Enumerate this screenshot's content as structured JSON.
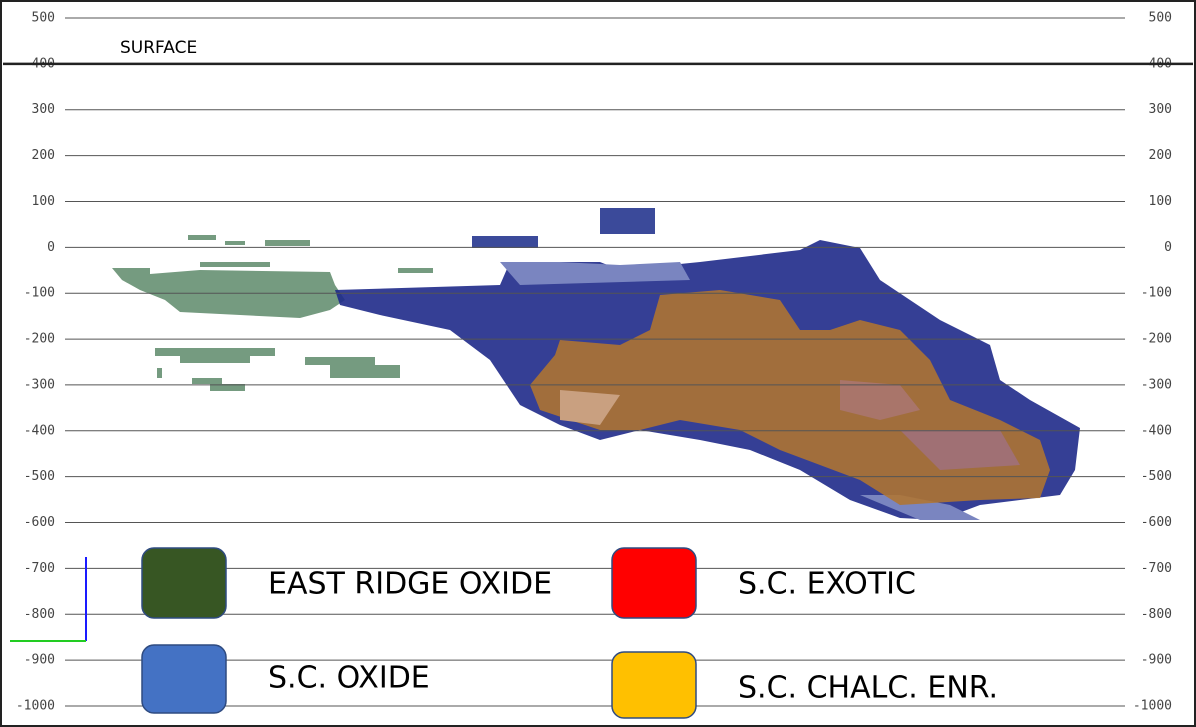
{
  "chart_data": {
    "type": "section",
    "annotation": "SURFACE",
    "surface_level": 400,
    "ylim": [
      -1000,
      500
    ],
    "yticks": [
      500,
      400,
      300,
      200,
      100,
      0,
      -100,
      -200,
      -300,
      -400,
      -500,
      -600,
      -700,
      -800,
      -900,
      -1000
    ],
    "grid": true,
    "series": [
      {
        "name": "EAST RIDGE OXIDE",
        "color": "#375623"
      },
      {
        "name": "S.C. EXOTIC",
        "color": "#ff0000"
      },
      {
        "name": "S.C. OXIDE",
        "color": "#4472c4"
      },
      {
        "name": "S.C. CHALC. ENR.",
        "color": "#ffc000"
      }
    ]
  }
}
